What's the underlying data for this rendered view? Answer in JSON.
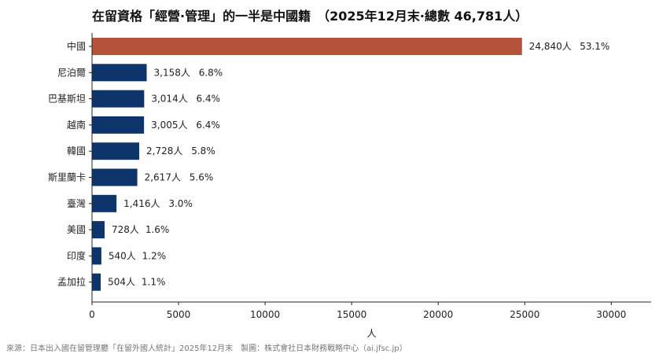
{
  "chart_data": {
    "type": "bar",
    "orientation": "horizontal",
    "title": "在留資格「經營·管理」的一半是中國籍　（2025年12月末·總數 46,781人）",
    "xlabel": "人",
    "ylabel": "",
    "xlim": [
      0,
      32300
    ],
    "xticks": [
      0,
      5000,
      10000,
      15000,
      20000,
      25000,
      30000
    ],
    "grid": false,
    "categories": [
      "中國",
      "尼泊爾",
      "巴基斯坦",
      "越南",
      "韓國",
      "斯里蘭卡",
      "臺灣",
      "美國",
      "印度",
      "孟加拉"
    ],
    "values": [
      24840,
      3158,
      3014,
      3005,
      2728,
      2617,
      1416,
      728,
      540,
      504
    ],
    "value_labels": [
      "24,840人",
      "3,158人",
      "3,014人",
      "3,005人",
      "2,728人",
      "2,617人",
      "1,416人",
      "728人",
      "540人",
      "504人"
    ],
    "percent_labels": [
      "53.1%",
      "6.8%",
      "6.4%",
      "6.4%",
      "5.8%",
      "5.6%",
      "3.0%",
      "1.6%",
      "1.2%",
      "1.1%"
    ],
    "colors": {
      "highlight": "#B5523B",
      "default": "#0E356B"
    },
    "highlight_index": 0
  },
  "source": "來源：日本出入國在留管理廳「在留外國人統計」2025年12月末　製圖：株式會社日本財務戰略中心（ai.jfsc.jp）"
}
